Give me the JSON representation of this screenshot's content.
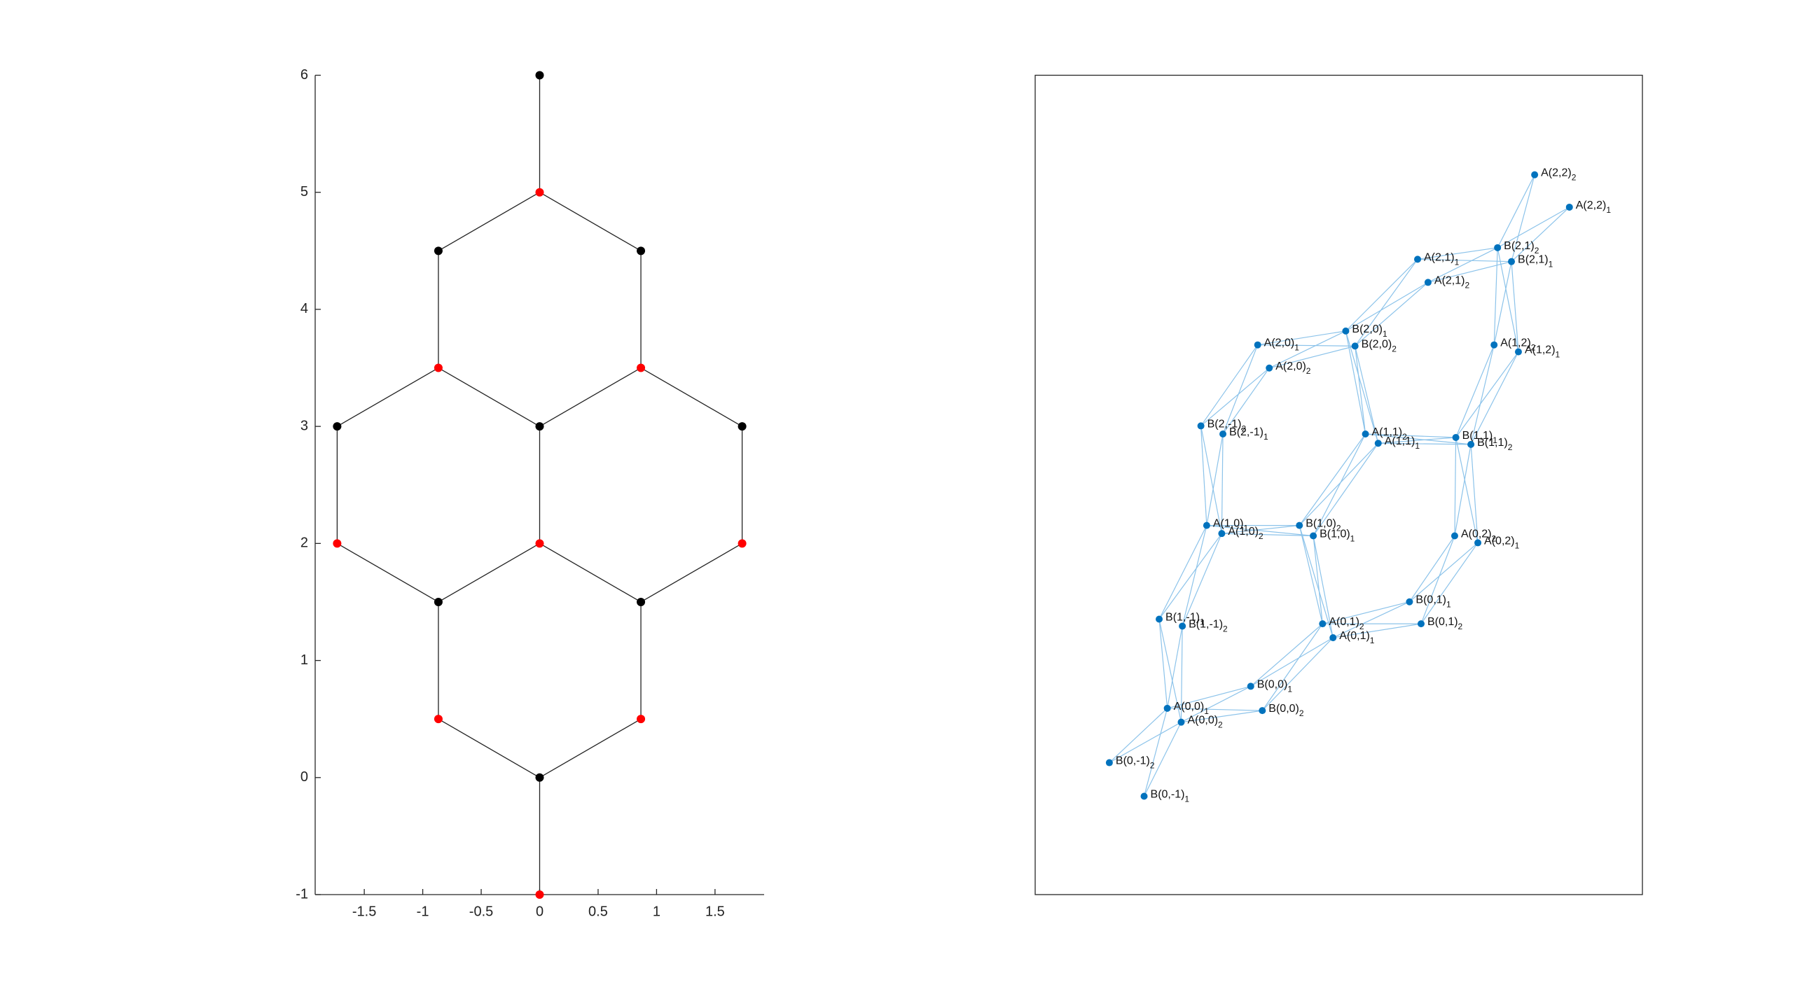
{
  "chart_data": [
    {
      "type": "graph",
      "xlim": [
        -1.92,
        1.92
      ],
      "ylim": [
        -1,
        6
      ],
      "xticks": [
        -1.5,
        -1,
        -0.5,
        0,
        0.5,
        1,
        1.5
      ],
      "yticks": [
        -1,
        0,
        1,
        2,
        3,
        4,
        5,
        6
      ],
      "edge_color": "#222222",
      "series": [
        {
          "color": "#000000",
          "x": [
            0,
            -0.866,
            0.866,
            -1.732,
            0,
            1.732,
            -0.866,
            0.866,
            0
          ],
          "y": [
            6,
            4.5,
            4.5,
            3,
            3,
            3,
            1.5,
            1.5,
            0
          ]
        },
        {
          "color": "#ff0000",
          "x": [
            0,
            -0.866,
            0.866,
            -1.732,
            0,
            1.732,
            -0.866,
            0.866,
            0
          ],
          "y": [
            5,
            3.5,
            3.5,
            2,
            2,
            2,
            0.5,
            0.5,
            -1
          ]
        }
      ],
      "edges": [
        [
          [
            0,
            0
          ],
          [
            1,
            0
          ]
        ],
        [
          [
            1,
            0
          ],
          [
            0,
            1
          ]
        ],
        [
          [
            1,
            0
          ],
          [
            0,
            2
          ]
        ],
        [
          [
            0,
            1
          ],
          [
            1,
            1
          ]
        ],
        [
          [
            0,
            2
          ],
          [
            1,
            2
          ]
        ],
        [
          [
            1,
            1
          ],
          [
            0,
            3
          ]
        ],
        [
          [
            1,
            1
          ],
          [
            0,
            4
          ]
        ],
        [
          [
            1,
            2
          ],
          [
            0,
            4
          ]
        ],
        [
          [
            1,
            2
          ],
          [
            0,
            5
          ]
        ],
        [
          [
            0,
            3
          ],
          [
            1,
            3
          ]
        ],
        [
          [
            0,
            4
          ],
          [
            1,
            4
          ]
        ],
        [
          [
            0,
            5
          ],
          [
            1,
            5
          ]
        ],
        [
          [
            1,
            3
          ],
          [
            0,
            6
          ]
        ],
        [
          [
            1,
            4
          ],
          [
            0,
            6
          ]
        ],
        [
          [
            1,
            4
          ],
          [
            0,
            7
          ]
        ],
        [
          [
            1,
            5
          ],
          [
            0,
            7
          ]
        ],
        [
          [
            0,
            6
          ],
          [
            1,
            6
          ]
        ],
        [
          [
            0,
            7
          ],
          [
            1,
            7
          ]
        ],
        [
          [
            1,
            6
          ],
          [
            0,
            8
          ]
        ],
        [
          [
            1,
            7
          ],
          [
            0,
            8
          ]
        ],
        [
          [
            0,
            8
          ],
          [
            1,
            8
          ]
        ]
      ]
    },
    {
      "type": "labeled-graph",
      "xlim": [
        0,
        52.4
      ],
      "ylim": [
        0,
        70.8
      ],
      "color": "#0072bd",
      "edge_color": "#8cc3ea",
      "x": [
        43.1,
        46.1,
        39.9,
        41.1,
        33.0,
        33.9,
        26.8,
        27.6,
        19.2,
        20.2,
        39.6,
        41.7,
        14.3,
        16.2,
        28.5,
        29.6,
        36.3,
        37.6,
        14.8,
        16.1,
        22.8,
        24.0,
        36.2,
        38.2,
        32.3,
        33.3,
        10.7,
        12.7,
        24.8,
        25.7,
        18.6,
        19.6,
        11.4,
        12.6,
        6.4,
        9.4
      ],
      "y": [
        62.2,
        59.4,
        55.9,
        54.7,
        54.9,
        52.9,
        48.7,
        47.4,
        47.5,
        45.5,
        47.5,
        46.9,
        40.5,
        39.8,
        39.8,
        39.0,
        39.5,
        38.9,
        31.9,
        31.2,
        31.9,
        31.0,
        31.0,
        30.4,
        25.3,
        23.4,
        23.8,
        23.2,
        23.4,
        22.2,
        18.0,
        15.9,
        16.1,
        14.9,
        11.4,
        8.5
      ],
      "labels": [
        "A(2,2)",
        "A(2,2)",
        "B(2,1)",
        "B(2,1)",
        "A(2,1)",
        "A(2,1)",
        "B(2,0)",
        "B(2,0)",
        "A(2,0)",
        "A(2,0)",
        "A(1,2)",
        "A(1,2)",
        "B(2,-1)",
        "B(2,-1)",
        "A(1,1)",
        "A(1,1)",
        "B(1,1)",
        "B(1,1)",
        "A(1,0)",
        "A(1,0)",
        "B(1,0)",
        "B(1,0)",
        "A(0,2)",
        "A(0,2)",
        "B(0,1)",
        "B(0,1)",
        "B(1,-1)",
        "B(1,-1)",
        "A(0,1)",
        "A(0,1)",
        "B(0,0)",
        "B(0,0)",
        "A(0,0)",
        "A(0,0)",
        "B(0,-1)",
        "B(0,-1)"
      ],
      "label_subscripts": [
        "2",
        "1",
        "2",
        "1",
        "1",
        "2",
        "1",
        "2",
        "1",
        "2",
        "2",
        "1",
        "2",
        "1",
        "2",
        "1",
        "1",
        "2",
        "1",
        "2",
        "2",
        "1",
        "2",
        "1",
        "1",
        "2",
        "1",
        "2",
        "2",
        "1",
        "1",
        "2",
        "1",
        "2",
        "2",
        "1"
      ],
      "edges": [
        [
          32,
          30
        ],
        [
          32,
          31
        ],
        [
          33,
          30
        ],
        [
          33,
          31
        ],
        [
          32,
          34
        ],
        [
          32,
          35
        ],
        [
          33,
          34
        ],
        [
          33,
          35
        ],
        [
          32,
          26
        ],
        [
          32,
          27
        ],
        [
          33,
          26
        ],
        [
          33,
          27
        ],
        [
          28,
          24
        ],
        [
          28,
          25
        ],
        [
          29,
          24
        ],
        [
          29,
          25
        ],
        [
          28,
          30
        ],
        [
          28,
          31
        ],
        [
          29,
          30
        ],
        [
          29,
          31
        ],
        [
          28,
          20
        ],
        [
          28,
          21
        ],
        [
          29,
          20
        ],
        [
          29,
          21
        ],
        [
          22,
          24
        ],
        [
          22,
          25
        ],
        [
          23,
          24
        ],
        [
          23,
          25
        ],
        [
          22,
          16
        ],
        [
          22,
          17
        ],
        [
          23,
          16
        ],
        [
          23,
          17
        ],
        [
          18,
          20
        ],
        [
          18,
          21
        ],
        [
          19,
          20
        ],
        [
          19,
          21
        ],
        [
          18,
          26
        ],
        [
          18,
          27
        ],
        [
          19,
          26
        ],
        [
          19,
          27
        ],
        [
          18,
          12
        ],
        [
          18,
          13
        ],
        [
          19,
          12
        ],
        [
          19,
          13
        ],
        [
          14,
          16
        ],
        [
          14,
          17
        ],
        [
          15,
          16
        ],
        [
          15,
          17
        ],
        [
          14,
          20
        ],
        [
          14,
          21
        ],
        [
          15,
          20
        ],
        [
          15,
          21
        ],
        [
          14,
          6
        ],
        [
          14,
          7
        ],
        [
          15,
          6
        ],
        [
          15,
          7
        ],
        [
          10,
          16
        ],
        [
          10,
          17
        ],
        [
          11,
          16
        ],
        [
          11,
          17
        ],
        [
          10,
          2
        ],
        [
          10,
          3
        ],
        [
          11,
          2
        ],
        [
          11,
          3
        ],
        [
          8,
          6
        ],
        [
          8,
          7
        ],
        [
          9,
          6
        ],
        [
          9,
          7
        ],
        [
          8,
          12
        ],
        [
          8,
          13
        ],
        [
          9,
          12
        ],
        [
          9,
          13
        ],
        [
          4,
          2
        ],
        [
          4,
          3
        ],
        [
          5,
          2
        ],
        [
          5,
          3
        ],
        [
          4,
          6
        ],
        [
          4,
          7
        ],
        [
          5,
          6
        ],
        [
          5,
          7
        ],
        [
          0,
          2
        ],
        [
          0,
          3
        ],
        [
          1,
          2
        ],
        [
          1,
          3
        ]
      ]
    }
  ]
}
